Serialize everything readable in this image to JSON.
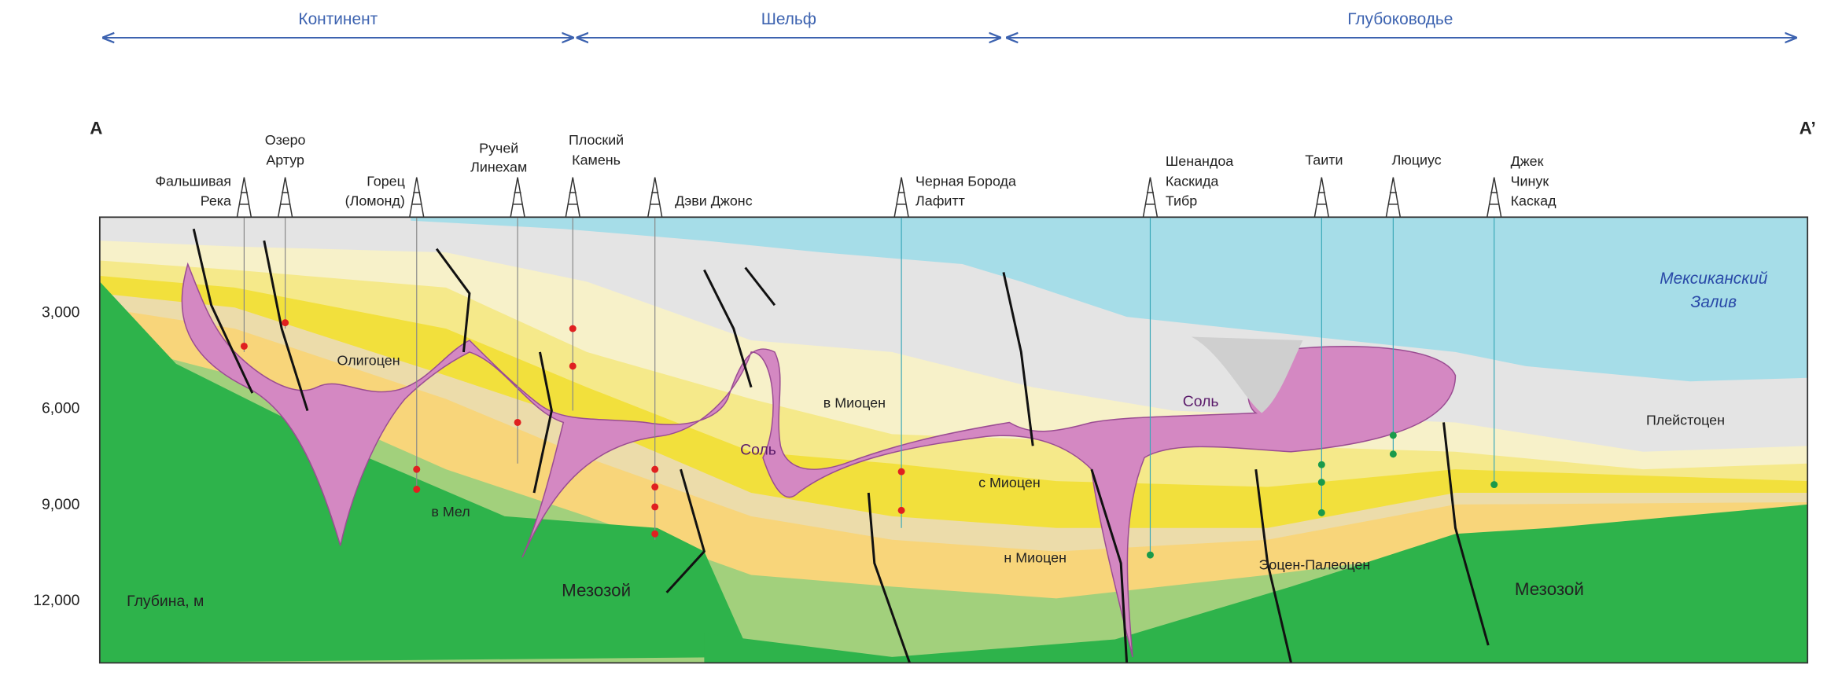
{
  "zones": [
    {
      "label": "Континент"
    },
    {
      "label": "Шельф"
    },
    {
      "label": "Глубоководье"
    }
  ],
  "section": {
    "start": "A",
    "end": "A’"
  },
  "wells": [
    {
      "lines": [
        "Фальшивая",
        "Река"
      ]
    },
    {
      "lines": [
        "Озеро",
        "Артур"
      ]
    },
    {
      "lines": [
        "Горец",
        "(Ломонд)"
      ]
    },
    {
      "lines": [
        "Ручей",
        "Линехам"
      ]
    },
    {
      "lines": [
        "Плоский",
        "Камень"
      ]
    },
    {
      "lines": [
        "Дэви Джонс"
      ]
    },
    {
      "lines": [
        "Черная Борода",
        "Лафитт"
      ]
    },
    {
      "lines": [
        "Шенандоа",
        "Каскида",
        "Тибр"
      ]
    },
    {
      "lines": [
        "Таити"
      ]
    },
    {
      "lines": [
        "Люциус"
      ]
    },
    {
      "lines": [
        "Джек",
        "Чинук",
        "Каскад"
      ]
    }
  ],
  "depth_axis": {
    "label": "Глубина, м",
    "ticks": [
      {
        "value": 3000,
        "label": "3,000"
      },
      {
        "value": 6000,
        "label": "6,000"
      },
      {
        "value": 9000,
        "label": "9,000"
      },
      {
        "value": 12000,
        "label": "12,000"
      }
    ]
  },
  "units": [
    {
      "label": "Олигоцен"
    },
    {
      "label": "в Мел"
    },
    {
      "label": "Мезозой"
    },
    {
      "label": "в Миоцен"
    },
    {
      "label": "Соль"
    },
    {
      "label": "с Миоцен"
    },
    {
      "label": "н Миоцен"
    },
    {
      "label": "Соль"
    },
    {
      "label": "Эоцен-Палеоцен"
    },
    {
      "label": "Мезозой"
    },
    {
      "label": "Плейстоцен"
    }
  ],
  "sea": {
    "lines": [
      "Мексиканский",
      "Залив"
    ]
  }
}
